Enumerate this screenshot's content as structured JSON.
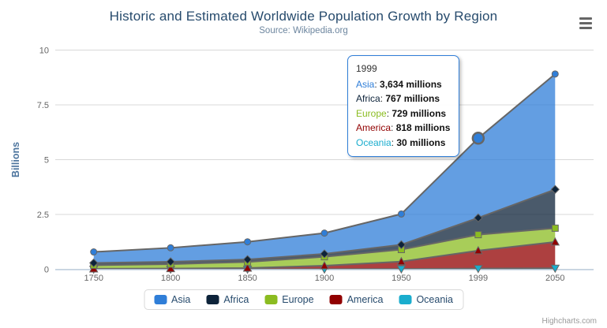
{
  "title": "Historic and Estimated Worldwide Population Growth by Region",
  "subtitle": "Source: Wikipedia.org",
  "credits": {
    "label": "Highcharts.com"
  },
  "export_menu": {
    "tooltip_name": "chart-context-menu"
  },
  "colors": {
    "title": "#274b6d",
    "subtitle": "#6D869F",
    "yaxis_title": "#4d759e",
    "tick_labels": "#666666",
    "gridline": "#d8d8d8",
    "xaxis_line": "#c0d0e0",
    "series_outline": "#666666",
    "legend_text": "#274b6d",
    "credits_text": "#999999",
    "tooltip_border": "#2f7ed8"
  },
  "yAxis": {
    "title": "Billions",
    "ticks": [
      0,
      2.5,
      5,
      7.5,
      10
    ],
    "tick_labels": [
      "0",
      "2.5",
      "5",
      "7.5",
      "10"
    ]
  },
  "tooltip": {
    "header": "1999",
    "rows": [
      {
        "name": "Asia",
        "value": "3,634 millions",
        "color": "#2f7ed8"
      },
      {
        "name": "Africa",
        "value": "767 millions",
        "color": "#0d233a"
      },
      {
        "name": "Europe",
        "value": "729 millions",
        "color": "#8bbc21"
      },
      {
        "name": "America",
        "value": "818 millions",
        "color": "#910000"
      },
      {
        "name": "Oceania",
        "value": "30 millions",
        "color": "#1aadce"
      }
    ]
  },
  "legend": [
    {
      "label": "Asia",
      "color": "#2f7ed8"
    },
    {
      "label": "Africa",
      "color": "#0d233a"
    },
    {
      "label": "Europe",
      "color": "#8bbc21"
    },
    {
      "label": "America",
      "color": "#910000"
    },
    {
      "label": "Oceania",
      "color": "#1aadce"
    }
  ],
  "chart_data": {
    "type": "area",
    "stacking": "normal",
    "title": "Historic and Estimated Worldwide Population Growth by Region",
    "subtitle": "Source: Wikipedia.org",
    "categories": [
      "1750",
      "1800",
      "1850",
      "1900",
      "1950",
      "1999",
      "2050"
    ],
    "unit": "millions",
    "xlabel": "",
    "ylabel": "Billions",
    "ylim": [
      0,
      10
    ],
    "grid": true,
    "legend_position": "bottom",
    "fill_opacity": 0.75,
    "series": [
      {
        "name": "Asia",
        "color": "#2f7ed8",
        "marker": "circle",
        "values": [
          502,
          635,
          809,
          947,
          1402,
          3634,
          5268
        ]
      },
      {
        "name": "Africa",
        "color": "#0d233a",
        "marker": "diamond",
        "values": [
          106,
          107,
          111,
          133,
          221,
          767,
          1766
        ]
      },
      {
        "name": "Europe",
        "color": "#8bbc21",
        "marker": "square",
        "values": [
          163,
          203,
          276,
          408,
          547,
          729,
          628
        ]
      },
      {
        "name": "America",
        "color": "#910000",
        "marker": "triangle",
        "values": [
          18,
          31,
          54,
          156,
          339,
          818,
          1201
        ]
      },
      {
        "name": "Oceania",
        "color": "#1aadce",
        "marker": "triangle-down",
        "values": [
          2,
          2,
          2,
          6,
          13,
          30,
          46
        ]
      }
    ],
    "stack_totals": [
      791,
      978,
      1252,
      1650,
      2522,
      5978,
      8909
    ],
    "hover_point": {
      "series": "Asia",
      "category": "1999",
      "stack_value_millions": 5978
    }
  }
}
